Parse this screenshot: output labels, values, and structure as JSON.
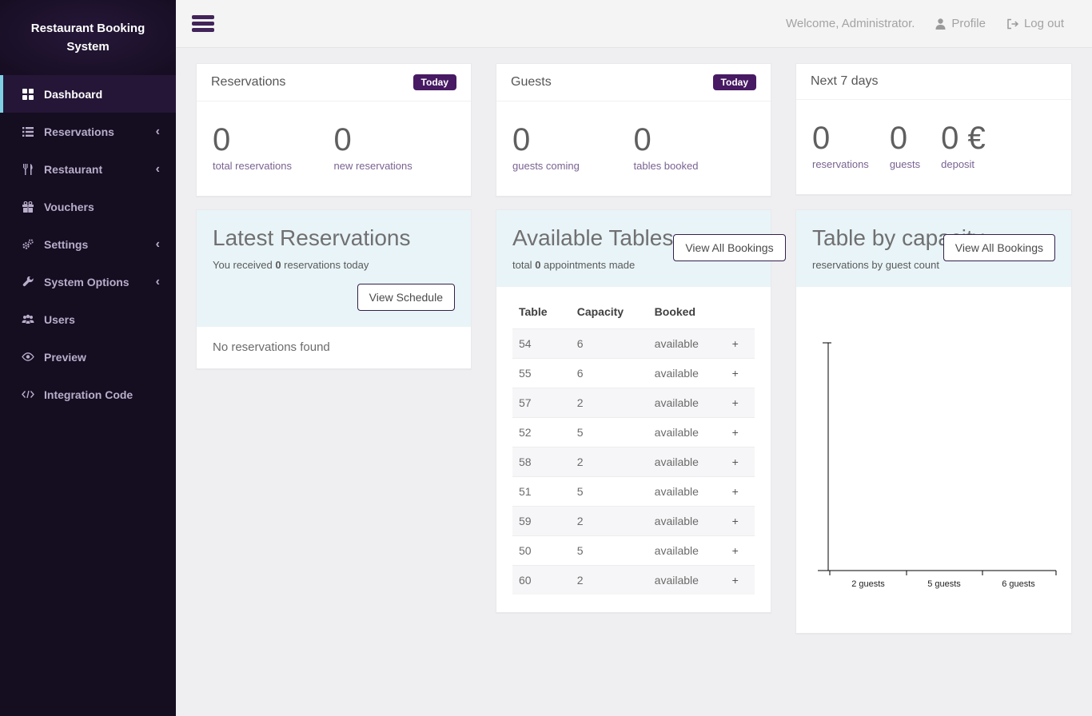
{
  "app": {
    "title": "Restaurant Booking System"
  },
  "topbar": {
    "welcome": "Welcome, Administrator.",
    "profile_label": "Profile",
    "logout_label": "Log out"
  },
  "sidebar": {
    "items": [
      {
        "label": "Dashboard",
        "icon": "dashboard-icon",
        "active": true,
        "chevron": false
      },
      {
        "label": "Reservations",
        "icon": "list-icon",
        "active": false,
        "chevron": true
      },
      {
        "label": "Restaurant",
        "icon": "cutlery-icon",
        "active": false,
        "chevron": true
      },
      {
        "label": "Vouchers",
        "icon": "gift-icon",
        "active": false,
        "chevron": false
      },
      {
        "label": "Settings",
        "icon": "gears-icon",
        "active": false,
        "chevron": true
      },
      {
        "label": "System Options",
        "icon": "wrench-icon",
        "active": false,
        "chevron": true
      },
      {
        "label": "Users",
        "icon": "users-icon",
        "active": false,
        "chevron": false
      },
      {
        "label": "Preview",
        "icon": "eye-icon",
        "active": false,
        "chevron": false
      },
      {
        "label": "Integration Code",
        "icon": "code-icon",
        "active": false,
        "chevron": false
      }
    ]
  },
  "colors": {
    "accent": "#471a63",
    "active_item_border": "#7fd0e4",
    "sidebar_bg": "#150d20",
    "panel_head_bg": "#e9f4f8"
  },
  "cards": {
    "reservations": {
      "title": "Reservations",
      "badge": "Today",
      "stats": [
        {
          "value": "0",
          "label": "total reservations"
        },
        {
          "value": "0",
          "label": "new reservations"
        }
      ]
    },
    "guests": {
      "title": "Guests",
      "badge": "Today",
      "stats": [
        {
          "value": "0",
          "label": "guests coming"
        },
        {
          "value": "0",
          "label": "tables booked"
        }
      ]
    },
    "next7": {
      "title": "Next 7 days",
      "stats": [
        {
          "value": "0",
          "label": "reservations"
        },
        {
          "value": "0",
          "label": "guests"
        },
        {
          "value": "0 €",
          "label": "deposit"
        }
      ]
    },
    "latest": {
      "title": "Latest Reservations",
      "subtitle_prefix": "You received ",
      "subtitle_count": "0",
      "subtitle_suffix": " reservations today",
      "button": "View Schedule",
      "empty_text": "No reservations found"
    },
    "available": {
      "title": "Available Tables",
      "subtitle_prefix": "total ",
      "subtitle_count": "0",
      "subtitle_suffix": " appointments made",
      "button": "View All Bookings",
      "table": {
        "headers": [
          "Table",
          "Capacity",
          "Booked"
        ],
        "rows": [
          [
            "54",
            "6",
            "available",
            "+"
          ],
          [
            "55",
            "6",
            "available",
            "+"
          ],
          [
            "57",
            "2",
            "available",
            "+"
          ],
          [
            "52",
            "5",
            "available",
            "+"
          ],
          [
            "58",
            "2",
            "available",
            "+"
          ],
          [
            "51",
            "5",
            "available",
            "+"
          ],
          [
            "59",
            "2",
            "available",
            "+"
          ],
          [
            "50",
            "5",
            "available",
            "+"
          ],
          [
            "60",
            "2",
            "available",
            "+"
          ]
        ]
      }
    },
    "capacity": {
      "title": "Table by capacity",
      "subtitle": "reservations by guest count",
      "button": "View All Bookings"
    }
  },
  "chart_data": {
    "type": "bar",
    "title": "Table by capacity",
    "subtitle": "reservations by guest count",
    "categories": [
      "2 guests",
      "5 guests",
      "6 guests"
    ],
    "values": [
      0,
      0,
      0
    ],
    "xlabel": "",
    "ylabel": "",
    "grid": false,
    "legend": false,
    "note": "empty axes, no bars plotted"
  }
}
